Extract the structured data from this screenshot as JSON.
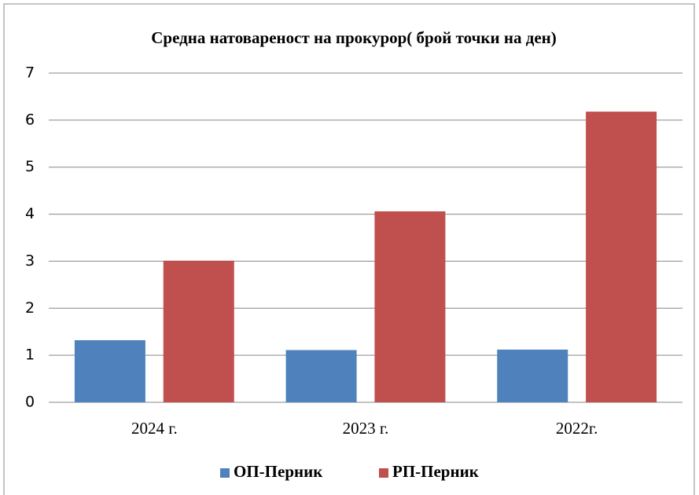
{
  "chart_data": {
    "type": "bar",
    "title": "Средна натовареност на прокурор( брой точки на ден)",
    "categories": [
      "2024 г.",
      "2023 г.",
      "2022г."
    ],
    "series": [
      {
        "name": "ОП-Перник",
        "color": "#4f81bd",
        "values": [
          1.32,
          1.11,
          1.12
        ]
      },
      {
        "name": "РП-Перник",
        "color": "#c0504d",
        "values": [
          3.01,
          4.06,
          6.18
        ]
      }
    ],
    "ylim": [
      0,
      7
    ],
    "yticks": [
      0,
      1,
      2,
      3,
      4,
      5,
      6,
      7
    ],
    "grid": true,
    "legend": "bottom"
  }
}
